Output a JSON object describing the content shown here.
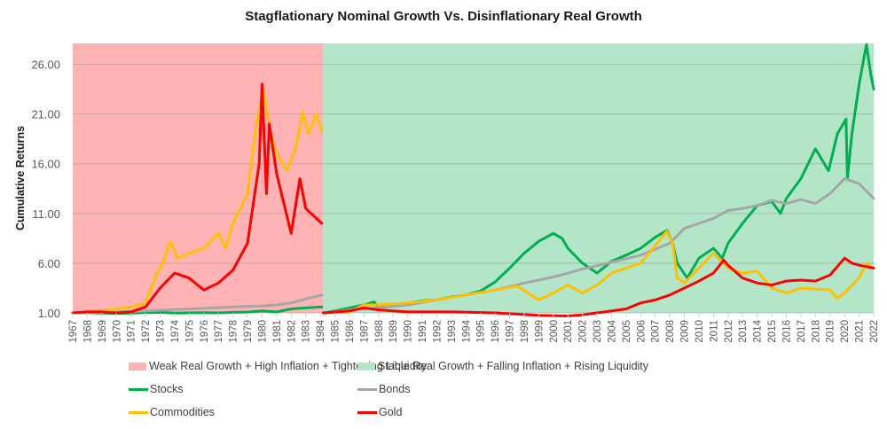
{
  "chart_data": {
    "type": "line",
    "title": "Stagflationary Nominal Growth Vs. Disinflationary Real Growth",
    "xlabel": "",
    "ylabel": "Cumulative Returns",
    "xlim": [
      1967,
      2022
    ],
    "ylim": [
      1.0,
      28.1
    ],
    "y_ticks": [
      1,
      6,
      11,
      16,
      21,
      26
    ],
    "y_tick_labels": [
      "1.00",
      "6.00",
      "11.00",
      "16.00",
      "21.00",
      "26.00"
    ],
    "x_tick_labels": [
      "1967",
      "1968",
      "1969",
      "1970",
      "1971",
      "1972",
      "1973",
      "1974",
      "1975",
      "1976",
      "1977",
      "1978",
      "1979",
      "1980",
      "1981",
      "1982",
      "1983",
      "1984",
      "1985",
      "1986",
      "1987",
      "1988",
      "1989",
      "1990",
      "1991",
      "1992",
      "1993",
      "1994",
      "1995",
      "1996",
      "1997",
      "1998",
      "1999",
      "2000",
      "2001",
      "2002",
      "2003",
      "2004",
      "2005",
      "2006",
      "2007",
      "2008",
      "2009",
      "2010",
      "2011",
      "2012",
      "2013",
      "2014",
      "2015",
      "2016",
      "2017",
      "2018",
      "2019",
      "2020",
      "2021",
      "2022"
    ],
    "grid": true,
    "legend_position": "bottom",
    "regimes": [
      {
        "name": "Weak Real Growth + High Inflation + Tightening Liquidity",
        "start": 1967,
        "end": 1984.2,
        "color": "#ffb3b5"
      },
      {
        "name": "Stable Real Growth + Falling Inflation + Rising Liquidity",
        "start": 1984.2,
        "end": 2022,
        "color": "#b3e6c8"
      }
    ],
    "series": [
      {
        "name": "Stocks",
        "color": "#00b050",
        "segments": [
          {
            "x": [
              1967,
              1968,
              1969,
              1970,
              1971,
              1972,
              1973,
              1974,
              1975,
              1976,
              1977,
              1978,
              1979,
              1980,
              1981,
              1982,
              1983,
              1984.1
            ],
            "y": [
              1.0,
              1.02,
              0.98,
              0.95,
              0.98,
              1.02,
              1.05,
              0.98,
              1.0,
              1.02,
              1.0,
              1.05,
              1.08,
              1.2,
              1.1,
              1.4,
              1.5,
              1.6
            ]
          },
          {
            "x": [
              1984.2,
              1985,
              1986,
              1987,
              1987.7,
              1988,
              1989,
              1990,
              1991,
              1992,
              1993,
              1994,
              1995,
              1996,
              1997,
              1998,
              1999,
              2000,
              2000.6,
              2001,
              2002,
              2003,
              2004,
              2005,
              2006,
              2007,
              2007.8,
              2008.2,
              2008.5,
              2009.2,
              2010,
              2011,
              2011.6,
              2012,
              2013,
              2014,
              2015,
              2015.6,
              2016,
              2017,
              2018,
              2018.9,
              2019.5,
              2020.1,
              2020.2,
              2020.5,
              2021,
              2021.5,
              2021.8,
              2022
            ],
            "y": [
              1.0,
              1.2,
              1.5,
              1.8,
              2.1,
              1.5,
              1.8,
              2.0,
              2.2,
              2.3,
              2.6,
              2.8,
              3.2,
              4.1,
              5.5,
              7.0,
              8.2,
              9.0,
              8.5,
              7.5,
              6.0,
              5.0,
              6.2,
              6.8,
              7.5,
              8.6,
              9.3,
              8.0,
              6.0,
              4.5,
              6.5,
              7.5,
              6.5,
              8.0,
              10.0,
              11.8,
              12.2,
              11.0,
              12.5,
              14.5,
              17.5,
              15.3,
              19.0,
              20.5,
              14.5,
              19.0,
              24.0,
              28.0,
              25.0,
              23.5
            ]
          }
        ]
      },
      {
        "name": "Bonds",
        "color": "#a6a6a6",
        "segments": [
          {
            "x": [
              1967,
              1969,
              1972,
              1975,
              1978,
              1980,
              1981,
              1982,
              1983,
              1984.1
            ],
            "y": [
              1.0,
              1.05,
              1.2,
              1.4,
              1.6,
              1.7,
              1.8,
              2.0,
              2.4,
              2.8
            ]
          },
          {
            "x": [
              1984.2,
              1986,
              1988,
              1990,
              1992,
              1994,
              1996,
              1998,
              2000,
              2002,
              2004,
              2006,
              2008,
              2009,
              2010,
              2011,
              2012,
              2013,
              2014,
              2015,
              2016,
              2017,
              2018,
              2019,
              2020,
              2021,
              2022
            ],
            "y": [
              1.0,
              1.3,
              1.5,
              1.8,
              2.3,
              2.8,
              3.3,
              4.0,
              4.6,
              5.4,
              6.1,
              6.8,
              8.0,
              9.5,
              10.0,
              10.5,
              11.3,
              11.5,
              11.8,
              12.3,
              12.0,
              12.4,
              12.0,
              13.0,
              14.5,
              14.0,
              12.5
            ]
          }
        ]
      },
      {
        "name": "Commodities",
        "color": "#ffc000",
        "segments": [
          {
            "x": [
              1967,
              1969,
              1970,
              1971,
              1972,
              1972.8,
              1973.2,
              1973.7,
              1974.2,
              1975,
              1976,
              1977,
              1977.5,
              1978,
              1979,
              1979.6,
              1980.1,
              1980.6,
              1981,
              1981.7,
              1982.3,
              1982.8,
              1983.2,
              1983.7,
              1984.1
            ],
            "y": [
              1.0,
              1.2,
              1.4,
              1.6,
              2.0,
              5.0,
              6.0,
              8.2,
              6.5,
              7.0,
              7.5,
              9.0,
              7.5,
              10.0,
              13.0,
              20.0,
              23.3,
              19.0,
              17.0,
              15.3,
              17.5,
              21.2,
              19.0,
              21.0,
              19.3
            ]
          },
          {
            "x": [
              1984.2,
              1986,
              1987,
              1988,
              1990,
              1992,
              1994,
              1996,
              1997.5,
              1999,
              2000,
              2001,
              2002,
              2003,
              2004,
              2006,
              2007.8,
              2008.2,
              2008.5,
              2009,
              2010,
              2011,
              2012,
              2013,
              2014,
              2015,
              2016,
              2017,
              2018,
              2019,
              2019.5,
              2020,
              2021,
              2021.5,
              2022
            ],
            "y": [
              1.0,
              1.1,
              1.8,
              1.8,
              2.0,
              2.3,
              2.8,
              3.3,
              3.7,
              2.3,
              3.0,
              3.8,
              3.0,
              3.8,
              5.0,
              6.0,
              9.2,
              8.0,
              4.5,
              4.0,
              5.5,
              7.0,
              5.5,
              5.0,
              5.2,
              3.5,
              3.0,
              3.5,
              3.4,
              3.3,
              2.5,
              3.0,
              4.5,
              6.0,
              5.5
            ]
          }
        ]
      },
      {
        "name": "Gold",
        "color": "#ff0000",
        "segments": [
          {
            "x": [
              1967,
              1968,
              1969,
              1970,
              1971,
              1972,
              1973,
              1974,
              1975,
              1976,
              1977,
              1978,
              1979,
              1979.8,
              1980.0,
              1980.3,
              1980.5,
              1981,
              1982,
              1982.6,
              1983,
              1984.1
            ],
            "y": [
              1.0,
              1.1,
              1.1,
              1.0,
              1.1,
              1.6,
              3.5,
              5.0,
              4.5,
              3.3,
              4.0,
              5.3,
              8.0,
              16.0,
              24.0,
              13.0,
              20.0,
              15.0,
              9.0,
              14.5,
              11.5,
              10.0
            ]
          },
          {
            "x": [
              1984.2,
              1986,
              1987,
              1988,
              1990,
              1993,
              1996,
              1999,
              2001,
              2002,
              2003,
              2004,
              2005,
              2006,
              2007,
              2008,
              2009,
              2010,
              2011,
              2011.7,
              2012,
              2013,
              2014,
              2015,
              2016,
              2017,
              2018,
              2019,
              2020,
              2020.5,
              2021,
              2022
            ],
            "y": [
              1.0,
              1.2,
              1.5,
              1.3,
              1.1,
              1.1,
              1.0,
              0.75,
              0.7,
              0.8,
              1.0,
              1.2,
              1.4,
              2.0,
              2.3,
              2.8,
              3.5,
              4.2,
              5.0,
              6.3,
              5.8,
              4.5,
              4.0,
              3.8,
              4.2,
              4.3,
              4.2,
              4.8,
              6.5,
              6.0,
              5.8,
              5.5
            ]
          }
        ]
      }
    ]
  },
  "legend": {
    "regime_weak": "Weak Real Growth + High Inflation + Tightening Liquidity",
    "regime_stable": "Stable Real Growth + Falling Inflation + Rising Liquidity",
    "stocks": "Stocks",
    "bonds": "Bonds",
    "commodities": "Commodities",
    "gold": "Gold"
  }
}
